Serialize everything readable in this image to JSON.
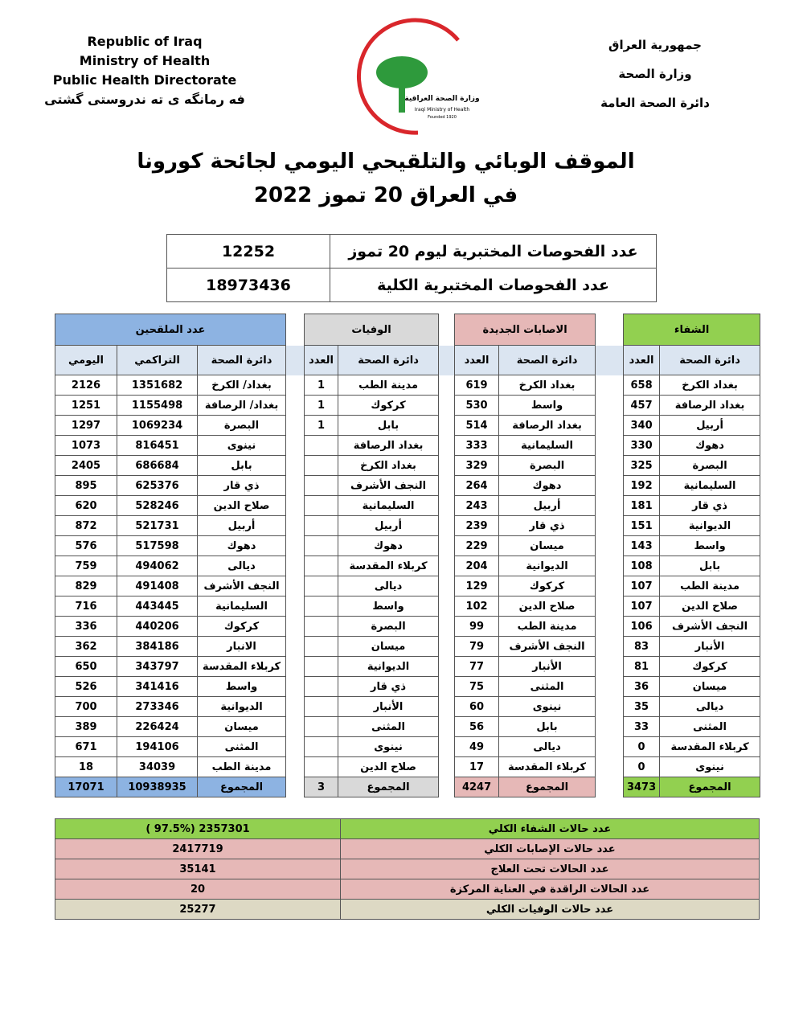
{
  "header": {
    "left": [
      "Republic of Iraq",
      "Ministry of Health",
      "Public Health Directorate",
      "فه رمانگه ى ته ندروستى گشتى"
    ],
    "right": [
      "جمهورية العراق",
      "وزارة الصحة",
      "دائرة الصحة العامة"
    ],
    "logo": [
      "وزارة الصحة العراقية",
      "Iraqi Ministry of Health",
      "Founded 1920"
    ]
  },
  "title": [
    "الموقف الوبائي والتلقيحي اليومي لجائحة كورونا",
    "في العراق  20 تموز 2022"
  ],
  "tests": [
    [
      "عدد الفحوصات المختبرية  ليوم 20  تموز",
      12252
    ],
    [
      "عدد الفحوصات المختبرية الكلية",
      18973436
    ]
  ],
  "main_table": {
    "groups": [
      {
        "title": "الشفاء",
        "headers": [
          "دائرة الصحة",
          "العدد"
        ],
        "rows": [
          [
            "بغداد الكرخ",
            658
          ],
          [
            "بغداد الرصافة",
            457
          ],
          [
            "أربيل",
            340
          ],
          [
            "دهوك",
            330
          ],
          [
            "البصرة",
            325
          ],
          [
            "السليمانية",
            192
          ],
          [
            "ذي قار",
            181
          ],
          [
            "الديوانية",
            151
          ],
          [
            "واسط",
            143
          ],
          [
            "بابل",
            108
          ],
          [
            "مدينة الطب",
            107
          ],
          [
            "صلاح الدين",
            107
          ],
          [
            "النجف الأشرف",
            106
          ],
          [
            "الأنبار",
            83
          ],
          [
            "كركوك",
            81
          ],
          [
            "ميسان",
            36
          ],
          [
            "ديالى",
            35
          ],
          [
            "المثنى",
            33
          ],
          [
            "كربلاء المقدسة",
            0
          ],
          [
            "نينوى",
            0
          ]
        ],
        "total": [
          "المجموع",
          3473
        ]
      },
      {
        "title": "الاصابات الجديدة",
        "headers": [
          "دائرة الصحة",
          "العدد"
        ],
        "rows": [
          [
            "بغداد الكرخ",
            619
          ],
          [
            "واسط",
            530
          ],
          [
            "بغداد الرصافة",
            514
          ],
          [
            "السليمانية",
            333
          ],
          [
            "البصرة",
            329
          ],
          [
            "دهوك",
            264
          ],
          [
            "أربيل",
            243
          ],
          [
            "ذي قار",
            239
          ],
          [
            "ميسان",
            229
          ],
          [
            "الديوانية",
            204
          ],
          [
            "كركوك",
            129
          ],
          [
            "صلاح الدين",
            102
          ],
          [
            "مدينة الطب",
            99
          ],
          [
            "النجف الأشرف",
            79
          ],
          [
            "الأنبار",
            77
          ],
          [
            "المثنى",
            75
          ],
          [
            "نينوى",
            60
          ],
          [
            "بابل",
            56
          ],
          [
            "ديالى",
            49
          ],
          [
            "كربلاء المقدسة",
            17
          ]
        ],
        "total": [
          "المجموع",
          4247
        ]
      },
      {
        "title": "الوفيات",
        "headers": [
          "دائرة الصحة",
          "العدد"
        ],
        "rows": [
          [
            "مدينة الطب",
            1
          ],
          [
            "كركوك",
            1
          ],
          [
            "بابل",
            1
          ],
          [
            "بغداد الرصافة"
          ],
          [
            "بغداد الكرخ"
          ],
          [
            "النجف الأشرف"
          ],
          [
            "السليمانية"
          ],
          [
            "أربيل"
          ],
          [
            "دهوك"
          ],
          [
            "كربلاء المقدسة"
          ],
          [
            "ديالى"
          ],
          [
            "واسط"
          ],
          [
            "البصرة"
          ],
          [
            "ميسان"
          ],
          [
            "الديوانية"
          ],
          [
            "ذي قار"
          ],
          [
            "الأنبار"
          ],
          [
            "المثنى"
          ],
          [
            "نينوى"
          ],
          [
            "صلاح الدين"
          ]
        ],
        "total": [
          "المجموع",
          3
        ]
      },
      {
        "title": "عدد الملقحين",
        "headers": [
          "دائرة الصحة",
          "التراكمي",
          "اليومي"
        ],
        "rows": [
          [
            "بغداد/ الكرخ",
            1351682,
            2126
          ],
          [
            "بغداد/ الرصافة",
            1155498,
            1251
          ],
          [
            "البصرة",
            1069234,
            1297
          ],
          [
            "نينوى",
            816451,
            1073
          ],
          [
            "بابل",
            686684,
            2405
          ],
          [
            "ذي قار",
            625376,
            895
          ],
          [
            "صلاح الدين",
            528246,
            620
          ],
          [
            "أربيل",
            521731,
            872
          ],
          [
            "دهوك",
            517598,
            576
          ],
          [
            "ديالى",
            494062,
            759
          ],
          [
            "النجف الأشرف",
            491408,
            829
          ],
          [
            "السليمانية",
            443445,
            716
          ],
          [
            "كركوك",
            440206,
            336
          ],
          [
            "الانبار",
            384186,
            362
          ],
          [
            "كربلاء المقدسة",
            343797,
            650
          ],
          [
            "واسط",
            341416,
            526
          ],
          [
            "الديوانية",
            273346,
            700
          ],
          [
            "ميسان",
            226424,
            389
          ],
          [
            "المثنى",
            194106,
            671
          ],
          [
            "مدينة الطب",
            34039,
            18
          ]
        ],
        "total": [
          "المجموع",
          10938935,
          17071
        ]
      }
    ]
  },
  "summary": [
    [
      "عدد حالات الشفاء الكلي",
      "( 97.5%)  2357301"
    ],
    [
      "عدد حالات الإصابات الكلي",
      2417719
    ],
    [
      "عدد الحالات تحت العلاج",
      35141
    ],
    [
      "عدد الحالات الراقدة في العناية المركزة",
      20
    ],
    [
      "عدد حالات الوفيات الكلي",
      25277
    ]
  ]
}
